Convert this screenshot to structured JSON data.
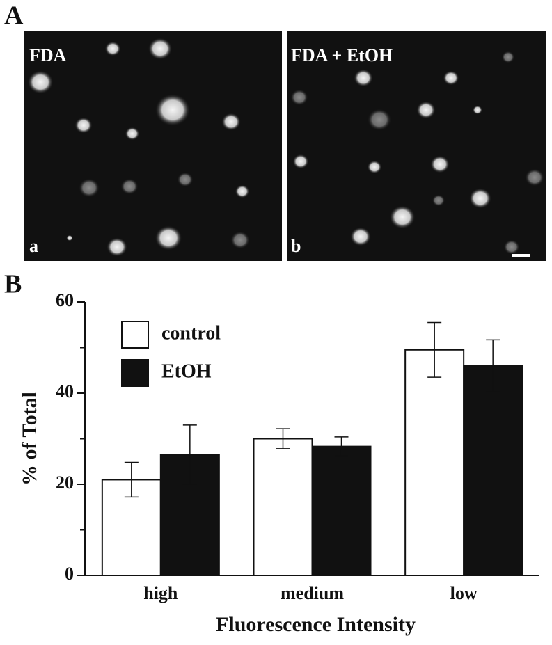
{
  "panel_labels": [
    "A",
    "B"
  ],
  "images": [
    {
      "label": "FDA",
      "sublabel": "a"
    },
    {
      "label": "FDA + EtOH",
      "sublabel": "b"
    }
  ],
  "chart_data": {
    "type": "bar",
    "xlabel": "Fluorescence Intensity",
    "ylabel": "% of Total",
    "categories": [
      "high",
      "medium",
      "low"
    ],
    "series": [
      {
        "name": "control",
        "color": "#ffffff",
        "values": [
          21,
          30,
          49.5
        ],
        "errors": [
          3.8,
          2.2,
          6
        ]
      },
      {
        "name": "EtOH",
        "color": "#111111",
        "values": [
          26.5,
          28.3,
          46
        ],
        "errors": [
          6.5,
          2.1,
          5.7
        ]
      }
    ],
    "ylim": [
      0,
      60
    ],
    "yticks": [
      0,
      20,
      40,
      60
    ],
    "yminorticks": [
      10,
      30,
      50
    ],
    "legend": "top-left"
  }
}
